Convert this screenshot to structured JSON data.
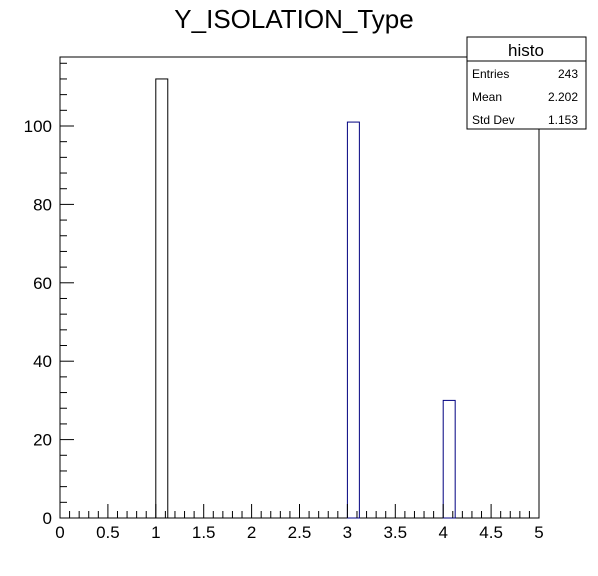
{
  "chart_data": {
    "type": "bar",
    "title": "Y_ISOLATION_Type",
    "xlabel": "",
    "ylabel": "",
    "xlim": [
      0,
      5
    ],
    "ylim": [
      0,
      117.6
    ],
    "bin_width": 0.125,
    "bars": [
      {
        "x_low": 1.0,
        "x_high": 1.125,
        "value": 112
      },
      {
        "x_low": 3.0,
        "x_high": 3.125,
        "value": 101
      },
      {
        "x_low": 4.0,
        "x_high": 4.125,
        "value": 30
      }
    ],
    "x_ticks": [
      0,
      0.5,
      1,
      1.5,
      2,
      2.5,
      3,
      3.5,
      4,
      4.5,
      5
    ],
    "x_tick_labels": [
      "0",
      "0.5",
      "1",
      "1.5",
      "2",
      "2.5",
      "3",
      "3.5",
      "4",
      "4.5",
      "5"
    ],
    "y_ticks": [
      0,
      20,
      40,
      60,
      80,
      100
    ],
    "y_tick_labels": [
      "0",
      "20",
      "40",
      "60",
      "80",
      "100"
    ],
    "grid": false,
    "bar_colors": [
      "#000000",
      "#000080",
      "#000080"
    ]
  },
  "stats_box": {
    "title": "histo",
    "rows": [
      {
        "label": "Entries",
        "value": "243"
      },
      {
        "label": "Mean",
        "value": "2.202"
      },
      {
        "label": "Std Dev",
        "value": "1.153"
      }
    ]
  }
}
